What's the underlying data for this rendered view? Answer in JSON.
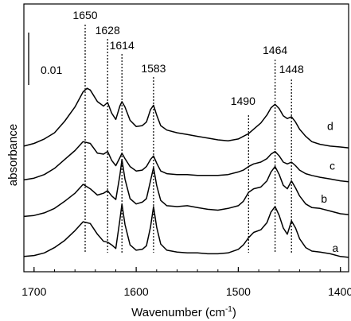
{
  "chart_data": {
    "type": "line",
    "title": "",
    "xlabel": "Wavenumber",
    "xunit": "cm",
    "xunit_exp": "-1",
    "ylabel": "absorbance",
    "x_reversed": true,
    "xlim": [
      1710,
      1392
    ],
    "x_ticks": [
      1700,
      1600,
      1500,
      1400
    ],
    "grid": false,
    "scale_bar": {
      "label": "0.01",
      "value": 0.01
    },
    "peak_markers": [
      {
        "x": 1650,
        "label": "1650"
      },
      {
        "x": 1628,
        "label": "1628"
      },
      {
        "x": 1614,
        "label": "1614"
      },
      {
        "x": 1583,
        "label": "1583"
      },
      {
        "x": 1490,
        "label": "1490"
      },
      {
        "x": 1464,
        "label": "1464"
      },
      {
        "x": 1448,
        "label": "1448"
      }
    ],
    "series_offsets": [
      0,
      0.0045,
      0.0085,
      0.0123
    ],
    "series": [
      {
        "name": "a",
        "x": [
          1710,
          1700,
          1690,
          1680,
          1670,
          1660,
          1652,
          1645,
          1638,
          1632,
          1628,
          1624,
          1620,
          1616,
          1614,
          1611,
          1606,
          1600,
          1594,
          1590,
          1586,
          1583,
          1580,
          1576,
          1570,
          1560,
          1550,
          1540,
          1530,
          1520,
          1510,
          1500,
          1495,
          1490,
          1485,
          1478,
          1472,
          1468,
          1464,
          1460,
          1456,
          1452,
          1448,
          1444,
          1440,
          1434,
          1428,
          1420,
          1410,
          1400,
          1392
        ],
        "y": [
          0.0002,
          0.0003,
          0.0006,
          0.0012,
          0.002,
          0.0031,
          0.0041,
          0.0039,
          0.0027,
          0.0019,
          0.0018,
          0.0015,
          0.0011,
          0.0043,
          0.0061,
          0.0038,
          0.0015,
          0.0009,
          0.001,
          0.0014,
          0.0035,
          0.0058,
          0.0035,
          0.0016,
          0.0009,
          0.0007,
          0.0006,
          0.0006,
          0.0005,
          0.0005,
          0.0006,
          0.001,
          0.0015,
          0.0023,
          0.0029,
          0.0032,
          0.004,
          0.0052,
          0.0058,
          0.0048,
          0.0034,
          0.0027,
          0.0042,
          0.0034,
          0.0022,
          0.0012,
          0.0008,
          0.0007,
          0.0005,
          0.0002,
          0.0001
        ]
      },
      {
        "name": "b",
        "x": [
          1710,
          1700,
          1690,
          1680,
          1670,
          1660,
          1652,
          1645,
          1638,
          1632,
          1628,
          1624,
          1620,
          1616,
          1614,
          1611,
          1606,
          1600,
          1594,
          1590,
          1586,
          1583,
          1580,
          1576,
          1570,
          1560,
          1550,
          1540,
          1530,
          1520,
          1510,
          1500,
          1495,
          1490,
          1485,
          1478,
          1472,
          1468,
          1464,
          1460,
          1456,
          1452,
          1448,
          1444,
          1440,
          1434,
          1428,
          1420,
          1410,
          1400,
          1392
        ],
        "y": [
          0.0002,
          0.0003,
          0.0006,
          0.0011,
          0.0019,
          0.0028,
          0.0038,
          0.0033,
          0.0026,
          0.0028,
          0.0031,
          0.0025,
          0.0021,
          0.0048,
          0.0066,
          0.0044,
          0.0022,
          0.0016,
          0.0018,
          0.0022,
          0.0042,
          0.0057,
          0.0037,
          0.002,
          0.0014,
          0.0013,
          0.0014,
          0.0012,
          0.001,
          0.0009,
          0.0011,
          0.0014,
          0.0019,
          0.0029,
          0.0033,
          0.0035,
          0.0042,
          0.0052,
          0.0058,
          0.0049,
          0.0037,
          0.0033,
          0.0042,
          0.0034,
          0.0025,
          0.0016,
          0.0012,
          0.0011,
          0.0008,
          0.0005,
          0.0004
        ]
      },
      {
        "name": "c",
        "x": [
          1710,
          1700,
          1690,
          1680,
          1670,
          1660,
          1652,
          1645,
          1638,
          1632,
          1628,
          1624,
          1620,
          1616,
          1614,
          1611,
          1606,
          1600,
          1594,
          1590,
          1586,
          1583,
          1580,
          1576,
          1570,
          1560,
          1550,
          1540,
          1530,
          1520,
          1510,
          1500,
          1495,
          1490,
          1485,
          1478,
          1472,
          1468,
          1464,
          1460,
          1456,
          1452,
          1448,
          1444,
          1440,
          1434,
          1428,
          1420,
          1410,
          1400,
          1392
        ],
        "y": [
          0.0003,
          0.0005,
          0.0009,
          0.0016,
          0.0026,
          0.0036,
          0.0046,
          0.0044,
          0.0033,
          0.0032,
          0.0035,
          0.0025,
          0.0019,
          0.0028,
          0.0033,
          0.0027,
          0.0018,
          0.0013,
          0.0014,
          0.0018,
          0.0026,
          0.003,
          0.0022,
          0.0013,
          0.001,
          0.0009,
          0.0009,
          0.0008,
          0.0008,
          0.0008,
          0.0009,
          0.0012,
          0.0014,
          0.0018,
          0.0021,
          0.0023,
          0.0027,
          0.0032,
          0.0035,
          0.003,
          0.0023,
          0.0021,
          0.0023,
          0.0019,
          0.0014,
          0.001,
          0.0008,
          0.0006,
          0.0004,
          0.0002,
          0.0001
        ]
      },
      {
        "name": "d",
        "x": [
          1710,
          1700,
          1690,
          1680,
          1670,
          1660,
          1652,
          1648,
          1645,
          1638,
          1632,
          1628,
          1624,
          1620,
          1616,
          1614,
          1611,
          1606,
          1600,
          1594,
          1590,
          1586,
          1583,
          1580,
          1576,
          1570,
          1560,
          1550,
          1540,
          1530,
          1520,
          1510,
          1500,
          1495,
          1490,
          1485,
          1478,
          1472,
          1468,
          1464,
          1460,
          1456,
          1452,
          1448,
          1444,
          1440,
          1434,
          1428,
          1420,
          1410,
          1400,
          1392
        ],
        "y": [
          0.0003,
          0.0006,
          0.0011,
          0.0018,
          0.0031,
          0.0047,
          0.0064,
          0.0068,
          0.0066,
          0.0053,
          0.0048,
          0.0052,
          0.004,
          0.0033,
          0.0048,
          0.0053,
          0.0047,
          0.0032,
          0.0025,
          0.0026,
          0.003,
          0.0044,
          0.0049,
          0.0038,
          0.0026,
          0.0021,
          0.0018,
          0.0016,
          0.0014,
          0.0012,
          0.001,
          0.0009,
          0.0011,
          0.0014,
          0.0017,
          0.0022,
          0.0029,
          0.0038,
          0.0046,
          0.005,
          0.0045,
          0.0037,
          0.0034,
          0.0036,
          0.003,
          0.0022,
          0.0014,
          0.0008,
          0.0005,
          0.0003,
          0.0002,
          0.0001
        ]
      }
    ]
  }
}
